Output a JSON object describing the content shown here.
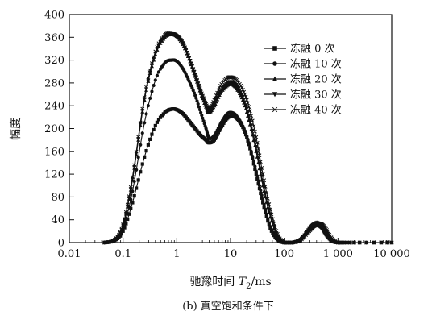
{
  "chart_data": {
    "type": "line",
    "xscale": "log",
    "xlim": [
      0.01,
      10000
    ],
    "ylim": [
      0,
      400
    ],
    "x_ticks": [
      0.01,
      0.1,
      1,
      10,
      100,
      1000,
      10000
    ],
    "x_tick_labels": [
      "0.01",
      "0.1",
      "1",
      "10",
      "100",
      "1 000",
      "10 000"
    ],
    "y_ticks": [
      0,
      40,
      80,
      120,
      160,
      200,
      240,
      280,
      320,
      360,
      400
    ],
    "y_tick_labels": [
      "0",
      "40",
      "80",
      "120",
      "160",
      "200",
      "240",
      "280",
      "320",
      "360",
      "400"
    ],
    "xlabel": "驰豫时间 T2/ms",
    "xlabel_prefix": "驰豫时间 ",
    "xlabel_var": "T",
    "xlabel_sub": "2",
    "xlabel_unit": "/ms",
    "ylabel": "幅度",
    "caption": "(b) 真空饱和条件下",
    "grid": false,
    "legend_position": "top-right",
    "series": [
      {
        "name": "冻融 0 次",
        "marker": "square",
        "x": [
          0.045,
          0.07,
          0.1,
          0.15,
          0.25,
          0.4,
          0.6,
          0.8,
          1.0,
          1.3,
          1.7,
          2.2,
          2.8,
          3.5,
          4.0,
          5.0,
          6.5,
          8.5,
          10.5,
          13,
          17,
          22,
          30,
          40,
          55,
          75,
          100,
          140,
          200,
          280,
          350,
          420,
          500,
          600,
          750,
          1000,
          2000,
          10000
        ],
        "y": [
          0,
          4,
          20,
          70,
          150,
          205,
          228,
          234,
          233,
          226,
          213,
          200,
          188,
          180,
          175,
          180,
          200,
          217,
          222,
          218,
          202,
          172,
          120,
          70,
          25,
          5,
          0,
          0,
          5,
          20,
          28,
          30,
          26,
          14,
          4,
          0,
          0,
          0
        ]
      },
      {
        "name": "冻融 10 次",
        "marker": "circle",
        "x": [
          0.045,
          0.07,
          0.1,
          0.15,
          0.25,
          0.4,
          0.6,
          0.8,
          1.0,
          1.3,
          1.7,
          2.2,
          2.8,
          3.5,
          4.0,
          5.0,
          6.5,
          8.5,
          10.5,
          13,
          17,
          22,
          30,
          40,
          55,
          75,
          100,
          140,
          200,
          280,
          350,
          420,
          500,
          600,
          750,
          1000,
          2000,
          10000
        ],
        "y": [
          0,
          4,
          25,
          90,
          210,
          285,
          315,
          320,
          318,
          305,
          283,
          258,
          228,
          200,
          183,
          188,
          208,
          225,
          228,
          222,
          204,
          175,
          125,
          75,
          28,
          6,
          0,
          0,
          6,
          22,
          30,
          32,
          28,
          15,
          4,
          0,
          0,
          0
        ]
      },
      {
        "name": "冻融 20 次",
        "marker": "triangle",
        "x": [
          0.045,
          0.07,
          0.1,
          0.15,
          0.25,
          0.4,
          0.6,
          0.8,
          1.0,
          1.3,
          1.7,
          2.2,
          2.8,
          3.5,
          4.0,
          5.0,
          6.5,
          8.5,
          10.5,
          13,
          17,
          22,
          30,
          40,
          55,
          75,
          100,
          140,
          200,
          280,
          350,
          420,
          500,
          600,
          750,
          1000,
          2000,
          10000
        ],
        "y": [
          0,
          5,
          30,
          110,
          250,
          330,
          360,
          365,
          362,
          348,
          322,
          292,
          262,
          238,
          228,
          240,
          262,
          275,
          278,
          270,
          250,
          215,
          160,
          100,
          45,
          10,
          0,
          0,
          6,
          24,
          33,
          35,
          30,
          17,
          5,
          0,
          0,
          0
        ]
      },
      {
        "name": "冻融 30 次",
        "marker": "triangle-down",
        "x": [
          0.045,
          0.07,
          0.1,
          0.15,
          0.25,
          0.4,
          0.6,
          0.8,
          1.0,
          1.3,
          1.7,
          2.2,
          2.8,
          3.5,
          4.0,
          5.0,
          6.5,
          8.5,
          10.5,
          13,
          17,
          22,
          30,
          40,
          55,
          75,
          100,
          140,
          200,
          280,
          350,
          420,
          500,
          600,
          750,
          1000,
          2000,
          10000
        ],
        "y": [
          0,
          5,
          30,
          112,
          252,
          332,
          362,
          366,
          363,
          350,
          324,
          294,
          264,
          240,
          230,
          242,
          265,
          278,
          282,
          275,
          256,
          222,
          168,
          106,
          50,
          12,
          0,
          0,
          5,
          22,
          32,
          34,
          31,
          19,
          6,
          0,
          0,
          0
        ]
      },
      {
        "name": "冻融 40 次",
        "marker": "x",
        "x": [
          0.045,
          0.07,
          0.1,
          0.15,
          0.25,
          0.4,
          0.6,
          0.8,
          1.0,
          1.3,
          1.7,
          2.2,
          2.8,
          3.5,
          4.0,
          5.0,
          6.5,
          8.5,
          10.5,
          13,
          17,
          22,
          30,
          40,
          55,
          75,
          100,
          140,
          200,
          280,
          350,
          420,
          500,
          600,
          750,
          1000,
          2000,
          10000
        ],
        "y": [
          0,
          5,
          32,
          115,
          255,
          335,
          364,
          366,
          362,
          348,
          323,
          295,
          266,
          243,
          235,
          250,
          275,
          288,
          290,
          285,
          268,
          238,
          185,
          120,
          58,
          15,
          0,
          0,
          4,
          18,
          28,
          33,
          32,
          24,
          9,
          0,
          0,
          0
        ]
      }
    ]
  }
}
